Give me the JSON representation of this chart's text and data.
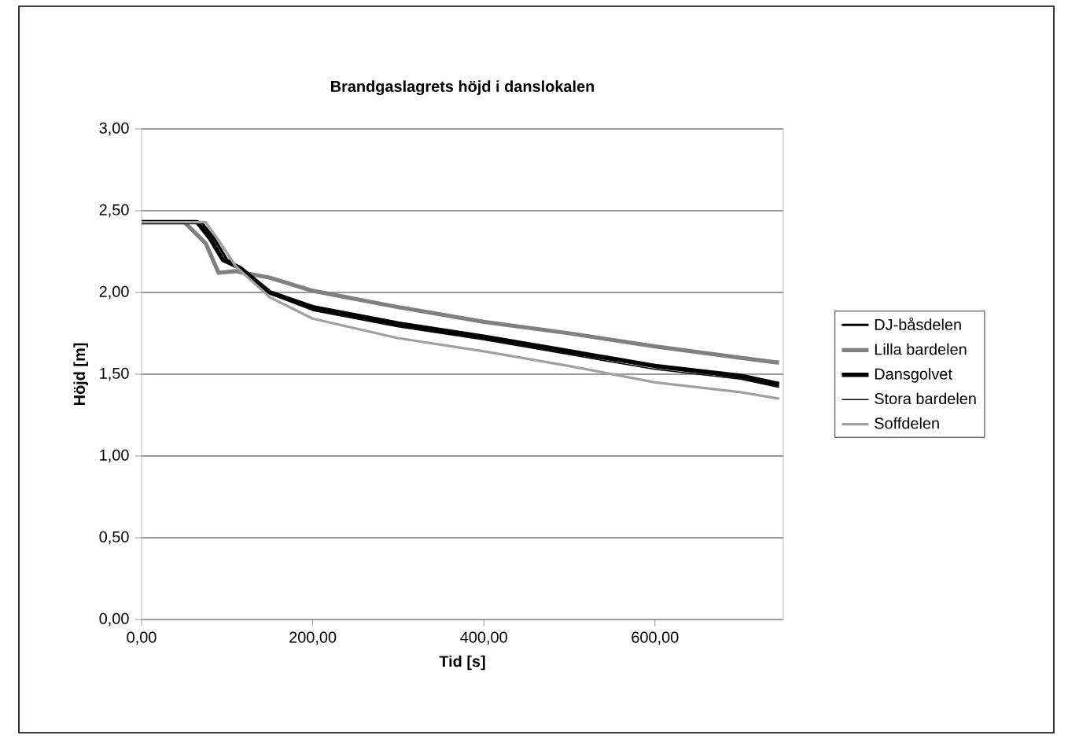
{
  "chart_data": {
    "type": "line",
    "title": "Brandgaslagrets höjd i danslokalen",
    "xlabel": "Tid [s]",
    "ylabel": "Höjd [m]",
    "xlim": [
      0,
      750
    ],
    "ylim": [
      0,
      3
    ],
    "xticks": [
      {
        "value": 0,
        "label": "0,00"
      },
      {
        "value": 200,
        "label": "200,00"
      },
      {
        "value": 400,
        "label": "400,00"
      },
      {
        "value": 600,
        "label": "600,00"
      }
    ],
    "yticks": [
      {
        "value": 0,
        "label": "0,00"
      },
      {
        "value": 0.5,
        "label": "0,50"
      },
      {
        "value": 1,
        "label": "1,00"
      },
      {
        "value": 1.5,
        "label": "1,50"
      },
      {
        "value": 2,
        "label": "2,00"
      },
      {
        "value": 2.5,
        "label": "2,50"
      },
      {
        "value": 3,
        "label": "3,00"
      }
    ],
    "grid": "y",
    "legend": "right",
    "marker": "none",
    "line_style": "solid",
    "series": [
      {
        "name": "DJ-båsdelen",
        "color": "#000000",
        "x": [
          0,
          70,
          85,
          100,
          115,
          150,
          200,
          300,
          400,
          500,
          600,
          700,
          745
        ],
        "values": [
          2.43,
          2.43,
          2.33,
          2.2,
          2.15,
          2.0,
          1.9,
          1.8,
          1.72,
          1.63,
          1.55,
          1.48,
          1.43
        ]
      },
      {
        "name": "Lilla bardelen",
        "color": "#808080",
        "x": [
          0,
          50,
          75,
          90,
          110,
          150,
          200,
          300,
          400,
          500,
          600,
          700,
          745
        ],
        "values": [
          2.43,
          2.43,
          2.3,
          2.12,
          2.13,
          2.09,
          2.01,
          1.91,
          1.82,
          1.75,
          1.67,
          1.6,
          1.57
        ]
      },
      {
        "name": "Dansgolvet",
        "color": "#000000",
        "x": [
          0,
          65,
          80,
          95,
          115,
          150,
          200,
          300,
          400,
          500,
          600,
          700,
          745
        ],
        "values": [
          2.43,
          2.43,
          2.33,
          2.2,
          2.15,
          2.0,
          1.91,
          1.81,
          1.73,
          1.64,
          1.55,
          1.49,
          1.44
        ]
      },
      {
        "name": "Stora bardelen",
        "color": "#000000",
        "x": [
          0,
          70,
          85,
          100,
          115,
          150,
          200,
          300,
          400,
          500,
          600,
          700,
          745
        ],
        "values": [
          2.43,
          2.43,
          2.32,
          2.2,
          2.15,
          1.99,
          1.89,
          1.79,
          1.71,
          1.62,
          1.53,
          1.47,
          1.42
        ]
      },
      {
        "name": "Soffdelen",
        "color": "#a0a0a0",
        "x": [
          0,
          75,
          90,
          110,
          150,
          200,
          300,
          400,
          500,
          600,
          700,
          745
        ],
        "values": [
          2.43,
          2.43,
          2.32,
          2.16,
          1.97,
          1.84,
          1.72,
          1.64,
          1.55,
          1.45,
          1.39,
          1.35
        ]
      }
    ]
  }
}
